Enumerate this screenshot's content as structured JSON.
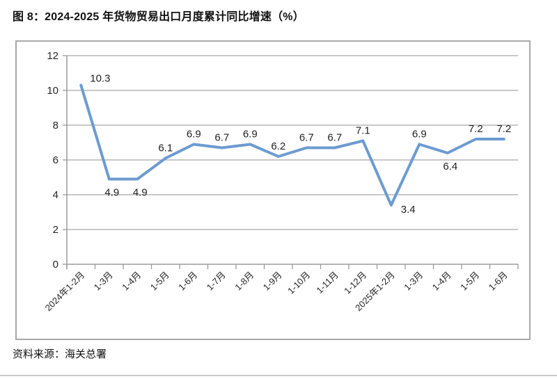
{
  "title": "图 8：2024-2025 年货物贸易出口月度累计同比增速（%）",
  "source": "资料来源：海关总署",
  "colors": {
    "line": "#6d9bd1",
    "grid": "#a6a6a6",
    "axis": "#9a9a9a",
    "label_text": "#1f1f1f",
    "tick_text": "#262626",
    "box_border": "#a8a8a8"
  },
  "chart_data": {
    "type": "line",
    "title": "2024-2025 年货物贸易出口月度累计同比增速（%）",
    "categories": [
      "2024年1-2月",
      "1-3月",
      "1-4月",
      "1-5月",
      "1-6月",
      "1-7月",
      "1-8月",
      "1-9月",
      "1-10月",
      "1-11月",
      "1-12月",
      "2025年1-2月",
      "1-3月",
      "1-4月",
      "1-5月",
      "1-6月"
    ],
    "values": [
      10.3,
      4.9,
      4.9,
      6.1,
      6.9,
      6.7,
      6.9,
      6.2,
      6.7,
      6.7,
      7.1,
      3.4,
      6.9,
      6.4,
      7.2,
      7.2
    ],
    "data_labels": [
      "10.3",
      "4.9",
      "4.9",
      "6.1",
      "6.9",
      "6.7",
      "6.9",
      "6.2",
      "6.7",
      "6.7",
      "7.1",
      "3.4",
      "6.9",
      "6.4",
      "7.2",
      "7.2"
    ],
    "label_placements": [
      "right-above",
      "below",
      "below",
      "above",
      "above",
      "above",
      "above",
      "above",
      "above",
      "above",
      "above",
      "right-below",
      "above",
      "below",
      "above",
      "above"
    ],
    "xlabel": "",
    "ylabel": "",
    "ylim": [
      0,
      12
    ],
    "yticks": [
      0,
      2,
      4,
      6,
      8,
      10,
      12
    ],
    "grid": true,
    "legend_position": "none",
    "x_label_rotation_deg": -45
  }
}
